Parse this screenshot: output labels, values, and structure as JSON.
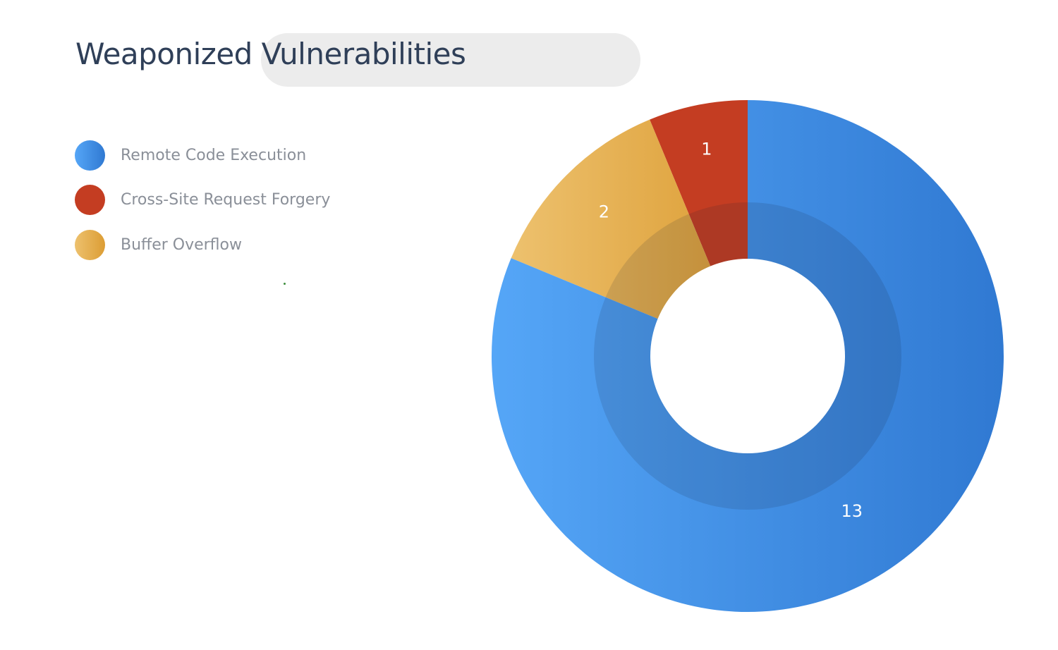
{
  "chart_data": {
    "type": "pie",
    "title": "Weaponized Vulnerabilities",
    "categories": [
      "Remote Code Execution",
      "Cross-Site Request Forgery",
      "Buffer Overflow"
    ],
    "values": [
      13,
      1,
      2
    ],
    "slice_labels": [
      "13",
      "1",
      "2"
    ],
    "donut": true,
    "legend_position": "left",
    "colors": {
      "Remote Code Execution": [
        "#55a6f7",
        "#3079d2"
      ],
      "Cross-Site Request Forgery": [
        "#c43d22",
        "#c43d22"
      ],
      "Buffer Overflow": [
        "#edc16e",
        "#dc9d34"
      ]
    }
  }
}
